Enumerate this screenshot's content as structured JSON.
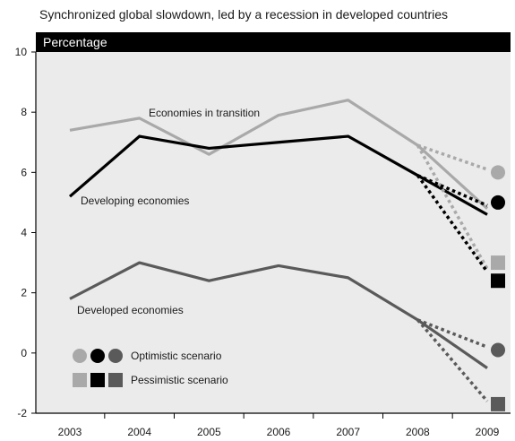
{
  "chart_data": {
    "type": "line",
    "title": "Synchronized global slowdown, led by a recession in developed countries",
    "ylabel": "Percentage",
    "xlabel": "",
    "categories": [
      "2003",
      "2004",
      "2005",
      "2006",
      "2007",
      "2008",
      "2009"
    ],
    "x": [
      2003,
      2004,
      2005,
      2006,
      2007,
      2008,
      2009
    ],
    "ylim": [
      -2,
      10
    ],
    "yticks": [
      "-2",
      "0",
      "2",
      "4",
      "6",
      "8",
      "10"
    ],
    "grid": false,
    "series": [
      {
        "name": "Economies in transition",
        "color": "#a9a9a9",
        "values": [
          7.4,
          7.8,
          6.6,
          7.9,
          8.4,
          6.9,
          4.8
        ],
        "optimistic": [
          6.9,
          6.1
        ],
        "pessimistic": [
          6.9,
          2.8
        ],
        "optimistic_2009": 6.0,
        "pessimistic_2009": 3.0
      },
      {
        "name": "Developing economies",
        "color": "#000000",
        "values": [
          5.2,
          7.2,
          6.8,
          7.0,
          7.2,
          5.9,
          4.6
        ],
        "optimistic": [
          5.9,
          4.9
        ],
        "pessimistic": [
          5.9,
          2.7
        ],
        "optimistic_2009": 5.0,
        "pessimistic_2009": 2.4
      },
      {
        "name": "Developed economies",
        "color": "#5a5a5a",
        "values": [
          1.8,
          3.0,
          2.4,
          2.9,
          2.5,
          1.1,
          -0.5
        ],
        "optimistic": [
          1.1,
          0.2
        ],
        "pessimistic": [
          1.1,
          -1.6
        ],
        "optimistic_2009": 0.1,
        "pessimistic_2009": -1.7
      }
    ],
    "legend": {
      "position": "bottom-left",
      "optimistic_label": "Optimistic scenario",
      "pessimistic_label": "Pessimistic scenario"
    }
  }
}
